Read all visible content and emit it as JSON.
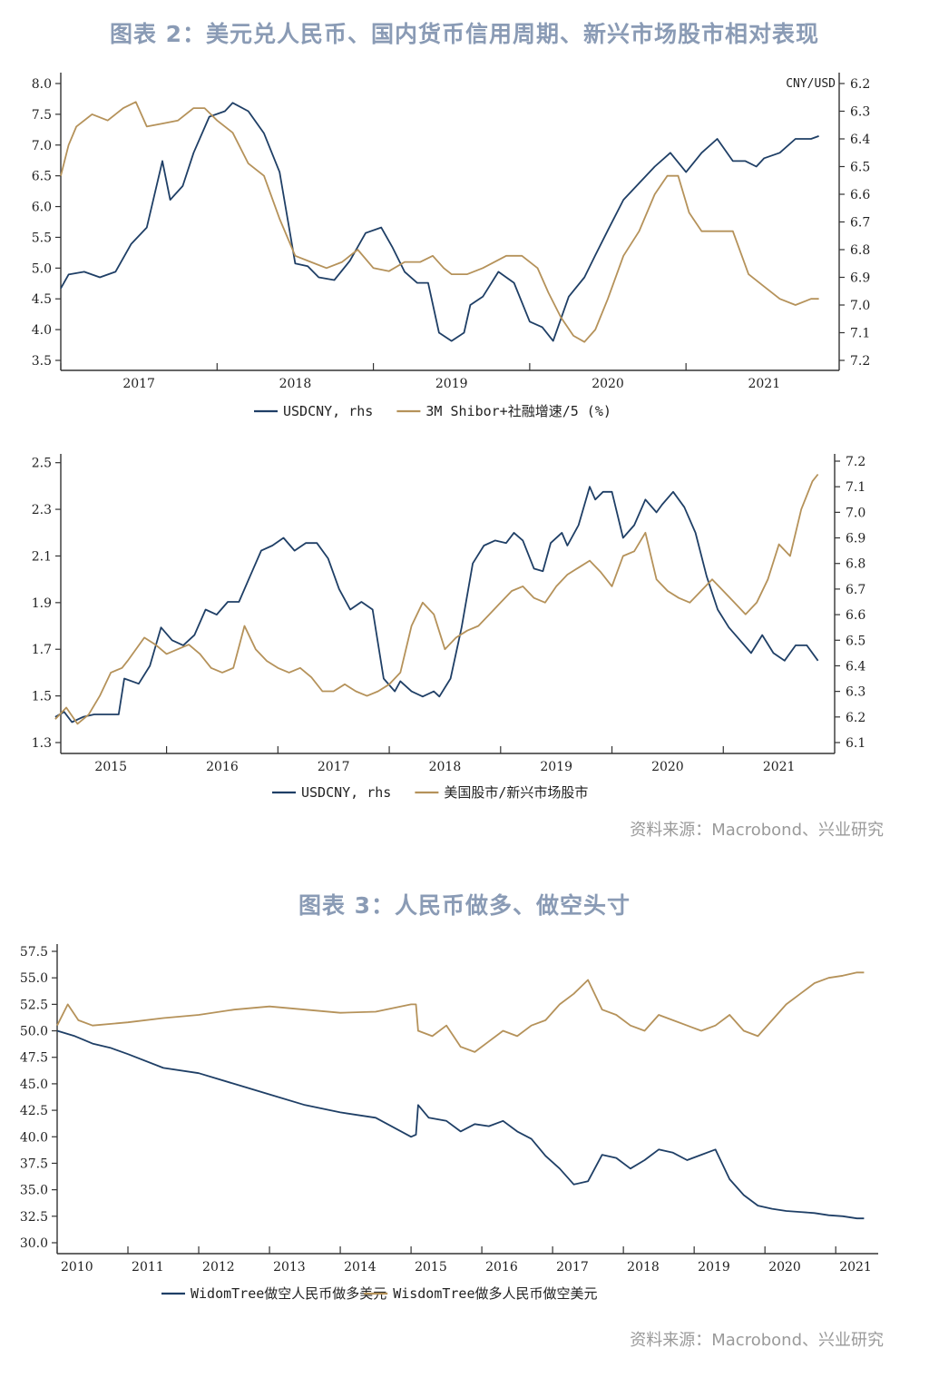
{
  "figure2": {
    "title": "图表 2：美元兑人民币、国内货币信用周期、新兴市场股市相对表现",
    "source": "资料来源：Macrobond、兴业研究"
  },
  "figure3": {
    "title": "图表 3：人民币做多、做空头寸",
    "source": "资料来源：Macrobond、兴业研究"
  },
  "colors": {
    "blue": "#1f3f66",
    "gold": "#b5925a"
  },
  "chart_data": [
    {
      "type": "line",
      "title": "",
      "x_ticks": [
        "2017",
        "2018",
        "2019",
        "2020",
        "2021"
      ],
      "ylim": [
        3.5,
        8.0
      ],
      "y_ticks": [
        "8.0",
        "7.5",
        "7.0",
        "6.5",
        "6.0",
        "5.5",
        "5.0",
        "4.5",
        "4.0",
        "3.5"
      ],
      "y2lim": [
        6.2,
        7.2
      ],
      "y2_inverted": true,
      "y2_ticks": [
        "6.2",
        "6.3",
        "6.4",
        "6.5",
        "6.6",
        "6.7",
        "6.8",
        "6.9",
        "7.0",
        "7.1",
        "7.2"
      ],
      "y2_unit": "CNY/USD",
      "legend": "bottom",
      "series": [
        {
          "name": "USDCNY, rhs",
          "axis": "right",
          "color": "#1f3f66",
          "x": [
            2016.5,
            2016.55,
            2016.65,
            2016.75,
            2016.85,
            2016.95,
            2017.05,
            2017.15,
            2017.2,
            2017.28,
            2017.35,
            2017.45,
            2017.55,
            2017.6,
            2017.7,
            2017.8,
            2017.9,
            2018.0,
            2018.08,
            2018.15,
            2018.25,
            2018.35,
            2018.45,
            2018.55,
            2018.62,
            2018.7,
            2018.78,
            2018.85,
            2018.92,
            2019.0,
            2019.08,
            2019.12,
            2019.2,
            2019.3,
            2019.4,
            2019.5,
            2019.58,
            2019.65,
            2019.75,
            2019.85,
            2019.92,
            2020.0,
            2020.1,
            2020.2,
            2020.3,
            2020.4,
            2020.5,
            2020.6,
            2020.7,
            2020.8,
            2020.88,
            2020.95,
            2021.0,
            2021.1,
            2021.2,
            2021.3,
            2021.35
          ],
          "y": [
            6.94,
            6.89,
            6.88,
            6.9,
            6.88,
            6.78,
            6.72,
            6.48,
            6.62,
            6.57,
            6.45,
            6.32,
            6.3,
            6.27,
            6.3,
            6.38,
            6.52,
            6.85,
            6.86,
            6.9,
            6.91,
            6.84,
            6.74,
            6.72,
            6.79,
            6.88,
            6.92,
            6.92,
            7.1,
            7.13,
            7.1,
            7.0,
            6.97,
            6.88,
            6.92,
            7.06,
            7.08,
            7.13,
            6.97,
            6.9,
            6.82,
            6.73,
            6.62,
            6.56,
            6.5,
            6.45,
            6.52,
            6.45,
            6.4,
            6.48,
            6.48,
            6.5,
            6.47,
            6.45,
            6.4,
            6.4,
            6.39
          ]
        },
        {
          "name": "3M Shibor+社融增速/5 (%)",
          "axis": "left",
          "color": "#b5925a",
          "x": [
            2016.5,
            2016.55,
            2016.6,
            2016.7,
            2016.8,
            2016.9,
            2016.98,
            2017.05,
            2017.15,
            2017.25,
            2017.35,
            2017.42,
            2017.5,
            2017.6,
            2017.7,
            2017.8,
            2017.9,
            2018.0,
            2018.1,
            2018.2,
            2018.3,
            2018.4,
            2018.5,
            2018.6,
            2018.7,
            2018.8,
            2018.88,
            2018.95,
            2019.0,
            2019.1,
            2019.2,
            2019.35,
            2019.45,
            2019.55,
            2019.62,
            2019.7,
            2019.78,
            2019.85,
            2019.92,
            2020.0,
            2020.1,
            2020.2,
            2020.3,
            2020.38,
            2020.45,
            2020.52,
            2020.6,
            2020.7,
            2020.8,
            2020.9,
            2021.0,
            2021.1,
            2021.2,
            2021.3,
            2021.35
          ],
          "y": [
            6.5,
            7.0,
            7.3,
            7.5,
            7.4,
            7.6,
            7.7,
            7.3,
            7.35,
            7.4,
            7.6,
            7.6,
            7.4,
            7.2,
            6.7,
            6.5,
            5.8,
            5.2,
            5.1,
            5.0,
            5.1,
            5.3,
            5.0,
            4.95,
            5.1,
            5.1,
            5.2,
            5.0,
            4.9,
            4.9,
            5.0,
            5.2,
            5.2,
            5.0,
            4.6,
            4.2,
            3.9,
            3.8,
            4.0,
            4.5,
            5.2,
            5.6,
            6.2,
            6.5,
            6.5,
            5.9,
            5.6,
            5.6,
            5.6,
            4.9,
            4.7,
            4.5,
            4.4,
            4.5,
            4.5
          ]
        }
      ]
    },
    {
      "type": "line",
      "title": "",
      "x_ticks": [
        "2015",
        "2016",
        "2017",
        "2018",
        "2019",
        "2020",
        "2021"
      ],
      "ylim": [
        1.3,
        2.6
      ],
      "y_ticks": [
        "2.5",
        "2.3",
        "2.1",
        "1.9",
        "1.7",
        "1.5",
        "1.3"
      ],
      "y2lim": [
        6.1,
        7.2
      ],
      "y2_ticks": [
        "7.2",
        "7.1",
        "7.0",
        "6.9",
        "6.8",
        "6.7",
        "6.6",
        "6.5",
        "6.4",
        "6.3",
        "6.2",
        "6.1"
      ],
      "legend": "bottom",
      "series": [
        {
          "name": "USDCNY, rhs",
          "axis": "right",
          "color": "#1f3f66",
          "x": [
            2014.5,
            2014.58,
            2014.65,
            2014.75,
            2014.85,
            2014.95,
            2015.07,
            2015.12,
            2015.25,
            2015.35,
            2015.45,
            2015.55,
            2015.65,
            2015.75,
            2015.85,
            2015.95,
            2016.05,
            2016.15,
            2016.25,
            2016.35,
            2016.45,
            2016.55,
            2016.65,
            2016.75,
            2016.85,
            2016.95,
            2017.05,
            2017.15,
            2017.25,
            2017.35,
            2017.45,
            2017.55,
            2017.6,
            2017.7,
            2017.8,
            2017.9,
            2017.95,
            2018.05,
            2018.15,
            2018.25,
            2018.35,
            2018.45,
            2018.55,
            2018.62,
            2018.7,
            2018.8,
            2018.88,
            2018.95,
            2019.05,
            2019.1,
            2019.2,
            2019.3,
            2019.35,
            2019.42,
            2019.5,
            2019.6,
            2019.7,
            2019.8,
            2019.9,
            2019.95,
            2020.05,
            2020.15,
            2020.25,
            2020.35,
            2020.45,
            2020.55,
            2020.65,
            2020.75,
            2020.85,
            2020.95,
            2021.05,
            2021.15,
            2021.25,
            2021.35
          ],
          "y": [
            6.2,
            6.22,
            6.18,
            6.2,
            6.21,
            6.21,
            6.21,
            6.35,
            6.33,
            6.4,
            6.55,
            6.5,
            6.48,
            6.52,
            6.62,
            6.6,
            6.65,
            6.65,
            6.75,
            6.85,
            6.87,
            6.9,
            6.85,
            6.88,
            6.88,
            6.82,
            6.7,
            6.62,
            6.65,
            6.62,
            6.35,
            6.3,
            6.34,
            6.3,
            6.28,
            6.3,
            6.28,
            6.35,
            6.55,
            6.8,
            6.87,
            6.89,
            6.88,
            6.92,
            6.89,
            6.78,
            6.77,
            6.88,
            6.92,
            6.87,
            6.95,
            7.1,
            7.05,
            7.08,
            7.08,
            6.9,
            6.95,
            7.05,
            7.0,
            7.03,
            7.08,
            7.02,
            6.92,
            6.75,
            6.62,
            6.55,
            6.5,
            6.45,
            6.52,
            6.45,
            6.42,
            6.48,
            6.48,
            6.42
          ]
        },
        {
          "name": "美国股市/新兴市场股市",
          "axis": "left",
          "color": "#b5925a",
          "x": [
            2014.5,
            2014.6,
            2014.7,
            2014.8,
            2014.9,
            2015.0,
            2015.1,
            2015.15,
            2015.3,
            2015.4,
            2015.5,
            2015.6,
            2015.7,
            2015.8,
            2015.9,
            2016.0,
            2016.1,
            2016.2,
            2016.3,
            2016.4,
            2016.5,
            2016.6,
            2016.7,
            2016.8,
            2016.9,
            2017.0,
            2017.1,
            2017.2,
            2017.3,
            2017.4,
            2017.5,
            2017.6,
            2017.7,
            2017.8,
            2017.9,
            2018.0,
            2018.1,
            2018.2,
            2018.3,
            2018.4,
            2018.5,
            2018.6,
            2018.7,
            2018.8,
            2018.9,
            2019.0,
            2019.1,
            2019.2,
            2019.3,
            2019.4,
            2019.5,
            2019.6,
            2019.7,
            2019.8,
            2019.9,
            2020.0,
            2020.1,
            2020.2,
            2020.3,
            2020.4,
            2020.5,
            2020.6,
            2020.7,
            2020.8,
            2020.9,
            2021.0,
            2021.1,
            2021.2,
            2021.3,
            2021.35
          ],
          "y": [
            1.4,
            1.45,
            1.38,
            1.42,
            1.5,
            1.6,
            1.62,
            1.65,
            1.75,
            1.72,
            1.68,
            1.7,
            1.72,
            1.68,
            1.62,
            1.6,
            1.62,
            1.8,
            1.7,
            1.65,
            1.62,
            1.6,
            1.62,
            1.58,
            1.52,
            1.52,
            1.55,
            1.52,
            1.5,
            1.52,
            1.55,
            1.6,
            1.8,
            1.9,
            1.85,
            1.7,
            1.75,
            1.78,
            1.8,
            1.85,
            1.9,
            1.95,
            1.97,
            1.92,
            1.9,
            1.97,
            2.02,
            2.05,
            2.08,
            2.03,
            1.97,
            2.1,
            2.12,
            2.2,
            2.0,
            1.95,
            1.92,
            1.9,
            1.95,
            2.0,
            1.95,
            1.9,
            1.85,
            1.9,
            2.0,
            2.15,
            2.1,
            2.3,
            2.42,
            2.45
          ]
        }
      ]
    },
    {
      "type": "line",
      "title": "",
      "x_ticks": [
        "2010",
        "2011",
        "2012",
        "2013",
        "2014",
        "2015",
        "2016",
        "2017",
        "2018",
        "2019",
        "2020",
        "2021"
      ],
      "ylim": [
        30.0,
        57.5
      ],
      "y_ticks": [
        "57.5",
        "55.0",
        "52.5",
        "50.0",
        "47.5",
        "45.0",
        "42.5",
        "40.0",
        "37.5",
        "35.0",
        "32.5",
        "30.0"
      ],
      "legend": "bottom",
      "series": [
        {
          "name": "WidomTree做空人民币做多美元",
          "color": "#1f3f66",
          "x": [
            2010.0,
            2010.25,
            2010.5,
            2010.75,
            2011.0,
            2011.5,
            2012.0,
            2012.5,
            2013.0,
            2013.5,
            2014.0,
            2014.5,
            2015.0,
            2015.07,
            2015.1,
            2015.25,
            2015.5,
            2015.7,
            2015.9,
            2016.1,
            2016.3,
            2016.5,
            2016.7,
            2016.9,
            2017.1,
            2017.3,
            2017.5,
            2017.7,
            2017.9,
            2018.1,
            2018.3,
            2018.5,
            2018.7,
            2018.9,
            2019.1,
            2019.3,
            2019.5,
            2019.7,
            2019.9,
            2020.1,
            2020.3,
            2020.5,
            2020.7,
            2020.9,
            2021.1,
            2021.3,
            2021.4
          ],
          "y": [
            50.0,
            49.5,
            48.8,
            48.4,
            47.8,
            46.5,
            46.0,
            45.0,
            44.0,
            43.0,
            42.3,
            41.8,
            40.0,
            40.2,
            43.0,
            41.8,
            41.5,
            40.5,
            41.2,
            41.0,
            41.5,
            40.5,
            39.8,
            38.2,
            37.0,
            35.5,
            35.8,
            38.3,
            38.0,
            37.0,
            37.8,
            38.8,
            38.5,
            37.8,
            38.3,
            38.8,
            36.0,
            34.5,
            33.5,
            33.2,
            33.0,
            32.9,
            32.8,
            32.6,
            32.5,
            32.3,
            32.3
          ]
        },
        {
          "name": "WisdomTree做多人民币做空美元",
          "color": "#b5925a",
          "x": [
            2010.0,
            2010.15,
            2010.3,
            2010.5,
            2011.0,
            2011.5,
            2012.0,
            2012.5,
            2013.0,
            2013.5,
            2014.0,
            2014.5,
            2015.0,
            2015.07,
            2015.1,
            2015.3,
            2015.5,
            2015.7,
            2015.9,
            2016.1,
            2016.3,
            2016.5,
            2016.7,
            2016.9,
            2017.1,
            2017.3,
            2017.5,
            2017.7,
            2017.9,
            2018.1,
            2018.3,
            2018.5,
            2018.7,
            2018.9,
            2019.1,
            2019.3,
            2019.5,
            2019.7,
            2019.9,
            2020.1,
            2020.3,
            2020.5,
            2020.7,
            2020.9,
            2021.1,
            2021.3,
            2021.4
          ],
          "y": [
            50.5,
            52.5,
            51.0,
            50.5,
            50.8,
            51.2,
            51.5,
            52.0,
            52.3,
            52.0,
            51.7,
            51.8,
            52.5,
            52.5,
            50.0,
            49.5,
            50.5,
            48.5,
            48.0,
            49.0,
            50.0,
            49.5,
            50.5,
            51.0,
            52.5,
            53.5,
            54.8,
            52.0,
            51.5,
            50.5,
            50.0,
            51.5,
            51.0,
            50.5,
            50.0,
            50.5,
            51.5,
            50.0,
            49.5,
            51.0,
            52.5,
            53.5,
            54.5,
            55.0,
            55.2,
            55.5,
            55.5
          ]
        }
      ]
    }
  ]
}
